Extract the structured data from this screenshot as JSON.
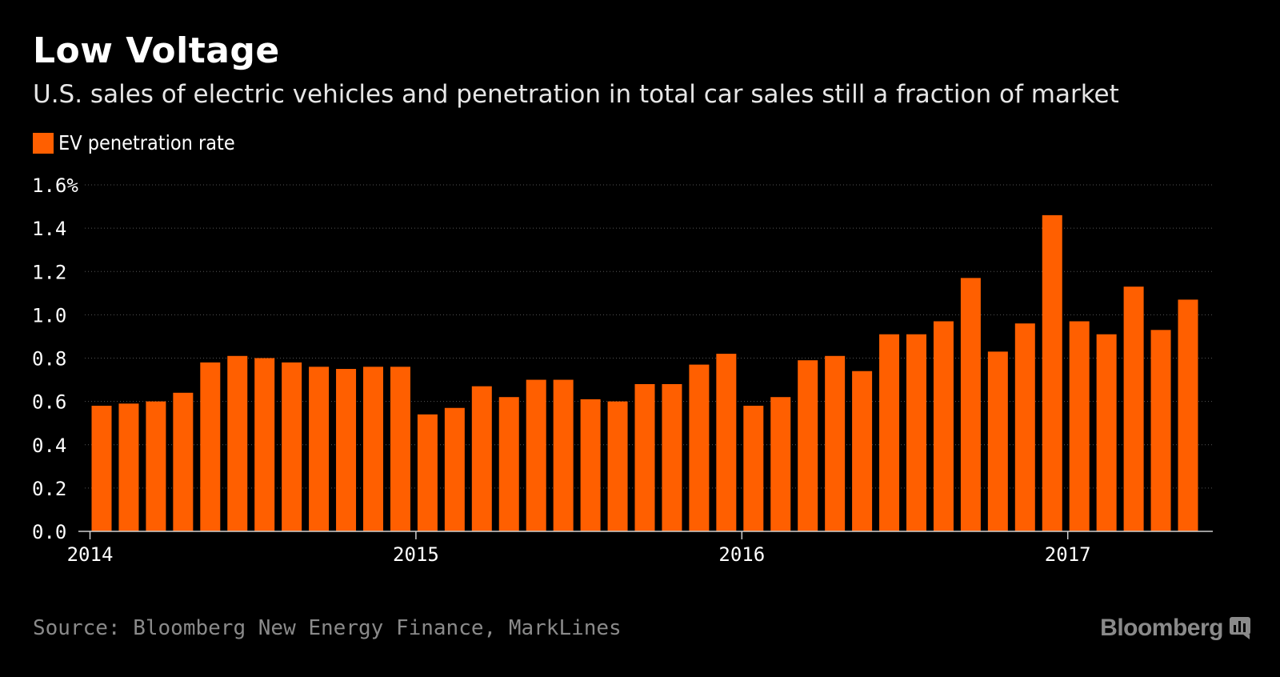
{
  "header": {
    "title": "Low Voltage",
    "subtitle": "U.S. sales of electric vehicles and penetration in total car sales still a fraction of market"
  },
  "legend": {
    "label": "EV penetration rate",
    "color": "#ff5f00"
  },
  "footer": {
    "source": "Source: Bloomberg New Energy Finance, MarkLines",
    "brand": "Bloomberg"
  },
  "colors": {
    "background": "#000000",
    "bar": "#ff5f00",
    "grid": "#555555",
    "axis": "#ffffff"
  },
  "chart_data": {
    "type": "bar",
    "title": "Low Voltage",
    "subtitle": "U.S. sales of electric vehicles and penetration in total car sales still a fraction of market",
    "xlabel": "",
    "ylabel": "",
    "ylim": [
      0,
      1.6
    ],
    "y_ticks": [
      "0.0",
      "0.2",
      "0.4",
      "0.6",
      "0.8",
      "1.0",
      "1.2",
      "1.4",
      "1.6%"
    ],
    "x_tick_labels": [
      "2014",
      "2015",
      "2016",
      "2017"
    ],
    "grid": true,
    "legend_position": "top-left",
    "categories": [
      "2014-01",
      "2014-02",
      "2014-03",
      "2014-04",
      "2014-05",
      "2014-06",
      "2014-07",
      "2014-08",
      "2014-09",
      "2014-10",
      "2014-11",
      "2014-12",
      "2015-01",
      "2015-02",
      "2015-03",
      "2015-04",
      "2015-05",
      "2015-06",
      "2015-07",
      "2015-08",
      "2015-09",
      "2015-10",
      "2015-11",
      "2015-12",
      "2016-01",
      "2016-02",
      "2016-03",
      "2016-04",
      "2016-05",
      "2016-06",
      "2016-07",
      "2016-08",
      "2016-09",
      "2016-10",
      "2016-11",
      "2016-12",
      "2017-01",
      "2017-02",
      "2017-03",
      "2017-04",
      "2017-05"
    ],
    "series": [
      {
        "name": "EV penetration rate",
        "values": [
          0.58,
          0.59,
          0.6,
          0.64,
          0.78,
          0.81,
          0.8,
          0.78,
          0.76,
          0.75,
          0.76,
          0.76,
          0.54,
          0.57,
          0.67,
          0.62,
          0.7,
          0.7,
          0.61,
          0.6,
          0.68,
          0.68,
          0.77,
          0.82,
          0.58,
          0.62,
          0.79,
          0.81,
          0.74,
          0.91,
          0.91,
          0.97,
          1.17,
          0.83,
          0.96,
          1.46,
          0.97,
          0.91,
          1.13,
          0.93,
          1.07
        ]
      }
    ]
  }
}
